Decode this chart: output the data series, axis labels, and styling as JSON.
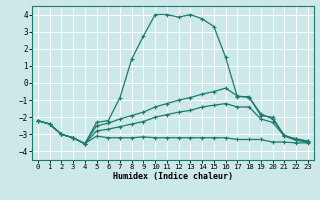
{
  "xlabel": "Humidex (Indice chaleur)",
  "ylabel": "",
  "bg_color": "#cce8e8",
  "grid_color": "#ffffff",
  "line_color": "#1a7a6e",
  "xlim": [
    -0.5,
    23.5
  ],
  "ylim": [
    -4.5,
    4.5
  ],
  "yticks": [
    -4,
    -3,
    -2,
    -1,
    0,
    1,
    2,
    3,
    4
  ],
  "xticks": [
    0,
    1,
    2,
    3,
    4,
    5,
    6,
    7,
    8,
    9,
    10,
    11,
    12,
    13,
    14,
    15,
    16,
    17,
    18,
    19,
    20,
    21,
    22,
    23
  ],
  "series": [
    {
      "x": [
        0,
        1,
        2,
        3,
        4,
        5,
        6,
        7,
        8,
        9,
        10,
        11,
        12,
        13,
        14,
        15,
        16,
        17,
        18,
        19,
        20,
        21,
        22,
        23
      ],
      "y": [
        -2.2,
        -2.4,
        -3.0,
        -3.2,
        -3.55,
        -2.3,
        -2.2,
        -0.85,
        1.4,
        2.75,
        4.0,
        4.0,
        3.85,
        4.0,
        3.75,
        3.3,
        1.5,
        -0.8,
        -0.8,
        -1.9,
        -2.0,
        -3.1,
        -3.25,
        -3.4
      ]
    },
    {
      "x": [
        0,
        1,
        2,
        3,
        4,
        5,
        6,
        7,
        8,
        9,
        10,
        11,
        12,
        13,
        14,
        15,
        16,
        17,
        18,
        19,
        20,
        21,
        22,
        23
      ],
      "y": [
        -2.2,
        -2.4,
        -3.0,
        -3.2,
        -3.55,
        -2.5,
        -2.35,
        -2.1,
        -1.9,
        -1.7,
        -1.4,
        -1.2,
        -1.0,
        -0.85,
        -0.65,
        -0.5,
        -0.3,
        -0.75,
        -0.85,
        -1.8,
        -2.1,
        -3.05,
        -3.3,
        -3.4
      ]
    },
    {
      "x": [
        0,
        1,
        2,
        3,
        4,
        5,
        6,
        7,
        8,
        9,
        10,
        11,
        12,
        13,
        14,
        15,
        16,
        17,
        18,
        19,
        20,
        21,
        22,
        23
      ],
      "y": [
        -2.2,
        -2.4,
        -3.0,
        -3.2,
        -3.55,
        -2.8,
        -2.7,
        -2.55,
        -2.4,
        -2.25,
        -2.0,
        -1.85,
        -1.7,
        -1.6,
        -1.4,
        -1.3,
        -1.2,
        -1.4,
        -1.4,
        -2.1,
        -2.3,
        -3.1,
        -3.35,
        -3.45
      ]
    },
    {
      "x": [
        0,
        1,
        2,
        3,
        4,
        5,
        6,
        7,
        8,
        9,
        10,
        11,
        12,
        13,
        14,
        15,
        16,
        17,
        18,
        19,
        20,
        21,
        22,
        23
      ],
      "y": [
        -2.2,
        -2.4,
        -3.0,
        -3.2,
        -3.55,
        -3.1,
        -3.2,
        -3.2,
        -3.2,
        -3.15,
        -3.2,
        -3.2,
        -3.2,
        -3.2,
        -3.2,
        -3.2,
        -3.2,
        -3.3,
        -3.3,
        -3.3,
        -3.45,
        -3.45,
        -3.5,
        -3.5
      ]
    }
  ]
}
